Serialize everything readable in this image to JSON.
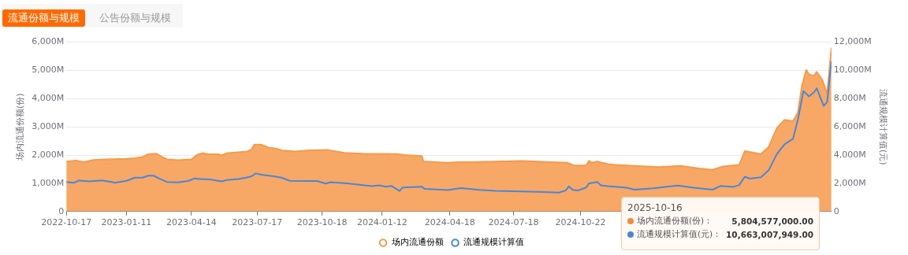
{
  "chart_data": {
    "type": "area",
    "ylabel": "场内流通份额(份)",
    "y2label": "流通规模计算值(元)",
    "annotations": [
      "流通份额与规模",
      "公告份额与规模",
      "2025-10-16",
      "场内流通份额(份)：",
      "5,804,577,000.00",
      "流通规模计算值(元)：",
      "10,663,007,949.00"
    ],
    "xlim": [
      "2022-10-17",
      "2025-10-16"
    ],
    "xticks": [
      "2022-10-17",
      "2023-01-11",
      "2023-04-14",
      "2023-07-17",
      "2023-10-18",
      "2024-01-12",
      "2024-04-18",
      "2024-07-18",
      "2024-10-22"
    ],
    "ylim": [
      0,
      6000
    ],
    "yticks": [
      0,
      {
        "value": 1000,
        "label": "1,000M"
      },
      {
        "value": 2000,
        "label": "2,000M"
      },
      {
        "value": 3000,
        "label": "3,000M"
      },
      {
        "value": 4000,
        "label": "4,000M"
      },
      {
        "value": 5000,
        "label": "5,000M"
      },
      {
        "value": 6000,
        "label": "6,000M"
      }
    ],
    "y2lim": [
      0,
      12000
    ],
    "y2ticks": [
      0,
      {
        "value": 2000,
        "label": "2,000M"
      },
      {
        "value": 4000,
        "label": "4,000M"
      },
      {
        "value": 6000,
        "label": "6,000M"
      },
      {
        "value": 8000,
        "label": "8,000M"
      },
      {
        "value": 10000,
        "label": "10,000M"
      },
      {
        "value": 12000,
        "label": "12,000M"
      }
    ],
    "grid": "y",
    "legend": "bottom",
    "marker": "none",
    "series": [
      {
        "name": "场内流通份额",
        "color": "#f7a35c",
        "x": [
          "2022-10-17",
          "2022-10-31",
          "2022-11-11",
          "2022-11-25",
          "2022-12-13",
          "2023-01-11",
          "2023-01-23",
          "2023-02-03",
          "2023-02-11",
          "2023-02-23",
          "2023-03-02",
          "2023-03-10",
          "2023-03-26",
          "2023-04-14",
          "2023-04-22",
          "2023-04-30",
          "2023-05-07",
          "2023-05-23",
          "2023-05-27",
          "2023-06-04",
          "2023-06-20",
          "2023-07-03",
          "2023-07-09",
          "2023-07-13",
          "2023-07-23",
          "2023-08-02",
          "2023-08-13",
          "2023-08-21",
          "2023-09-09",
          "2023-09-29",
          "2023-10-27",
          "2023-11-19",
          "2023-12-16",
          "2024-02-02",
          "2024-02-14",
          "2024-03-09",
          "2024-03-11",
          "2024-04-15",
          "2024-04-30",
          "2024-05-30",
          "2024-07-31",
          "2024-09-09",
          "2024-10-03",
          "2024-10-13",
          "2024-10-30",
          "2024-11-03",
          "2024-11-07",
          "2024-11-15",
          "2024-11-30",
          "2024-12-12",
          "2024-12-27",
          "2025-02-11",
          "2025-03-14",
          "2025-04-09",
          "2025-04-29",
          "2025-05-14",
          "2025-06-06",
          "2025-06-14",
          "2025-06-25",
          "2025-07-07",
          "2025-07-18",
          "2025-07-30",
          "2025-08-10",
          "2025-08-22",
          "2025-08-29",
          "2025-09-04",
          "2025-09-10",
          "2025-09-14",
          "2025-09-21",
          "2025-09-25",
          "2025-10-03",
          "2025-10-10",
          "2025-10-16"
        ],
        "values": [
          1770,
          1810,
          1750,
          1830,
          1850,
          1870,
          1890,
          1930,
          2030,
          2050,
          1950,
          1850,
          1820,
          1850,
          2010,
          2070,
          2030,
          2030,
          1990,
          2070,
          2100,
          2130,
          2200,
          2370,
          2370,
          2270,
          2230,
          2170,
          2130,
          2170,
          2180,
          2080,
          2050,
          2040,
          2000,
          1970,
          1770,
          1730,
          1750,
          1760,
          1790,
          1750,
          1730,
          1630,
          1630,
          1800,
          1730,
          1770,
          1680,
          1650,
          1630,
          1580,
          1620,
          1530,
          1480,
          1600,
          1650,
          2140,
          2090,
          2040,
          2280,
          2960,
          3250,
          3200,
          3500,
          4470,
          5020,
          4850,
          4810,
          4950,
          4660,
          4170,
          5804.577
        ]
      },
      {
        "name": "流通规模计算值",
        "type": "line",
        "axis": "y2",
        "color": "#4a86d8",
        "x": [
          "2022-10-17",
          "2022-10-28",
          "2022-11-04",
          "2022-11-18",
          "2022-12-07",
          "2022-12-21",
          "2022-12-25",
          "2023-01-11",
          "2023-01-23",
          "2023-02-03",
          "2023-02-11",
          "2023-02-19",
          "2023-02-27",
          "2023-03-10",
          "2023-03-26",
          "2023-04-10",
          "2023-04-18",
          "2023-04-26",
          "2023-05-11",
          "2023-05-27",
          "2023-06-04",
          "2023-06-20",
          "2023-07-01",
          "2023-07-09",
          "2023-07-15",
          "2023-07-25",
          "2023-08-10",
          "2023-08-21",
          "2023-09-02",
          "2023-09-29",
          "2023-10-11",
          "2023-10-23",
          "2023-10-30",
          "2023-11-23",
          "2023-12-28",
          "2024-01-08",
          "2024-01-17",
          "2024-01-25",
          "2024-02-06",
          "2024-02-10",
          "2024-03-09",
          "2024-03-13",
          "2024-03-25",
          "2024-04-15",
          "2024-05-04",
          "2024-05-30",
          "2024-06-22",
          "2024-07-31",
          "2024-09-01",
          "2024-09-21",
          "2024-10-01",
          "2024-10-05",
          "2024-10-11",
          "2024-10-19",
          "2024-10-30",
          "2024-11-03",
          "2024-11-15",
          "2024-11-20",
          "2024-11-30",
          "2024-12-27",
          "2025-01-07",
          "2025-02-03",
          "2025-03-10",
          "2025-04-02",
          "2025-04-29",
          "2025-05-10",
          "2025-05-29",
          "2025-06-06",
          "2025-06-14",
          "2025-06-21",
          "2025-07-07",
          "2025-07-18",
          "2025-07-30",
          "2025-08-10",
          "2025-08-22",
          "2025-08-29",
          "2025-09-06",
          "2025-09-14",
          "2025-09-21",
          "2025-09-25",
          "2025-10-05",
          "2025-10-10",
          "2025-10-16"
        ],
        "values": [
          2100,
          2040,
          2200,
          2140,
          2200,
          2100,
          2040,
          2180,
          2400,
          2400,
          2540,
          2540,
          2340,
          2100,
          2060,
          2180,
          2340,
          2300,
          2280,
          2140,
          2240,
          2300,
          2400,
          2500,
          2700,
          2600,
          2500,
          2400,
          2180,
          2160,
          2160,
          1980,
          2080,
          2000,
          1800,
          1860,
          1760,
          1820,
          1460,
          1700,
          1760,
          1600,
          1580,
          1520,
          1660,
          1540,
          1460,
          1420,
          1380,
          1340,
          1500,
          1780,
          1540,
          1500,
          1700,
          2000,
          2100,
          1860,
          1800,
          1690,
          1550,
          1650,
          1840,
          1690,
          1550,
          1810,
          1750,
          1880,
          2470,
          2330,
          2430,
          2910,
          4080,
          4760,
          5150,
          6500,
          8540,
          8160,
          8450,
          8740,
          7480,
          7770,
          10663.007949
        ]
      }
    ]
  }
}
